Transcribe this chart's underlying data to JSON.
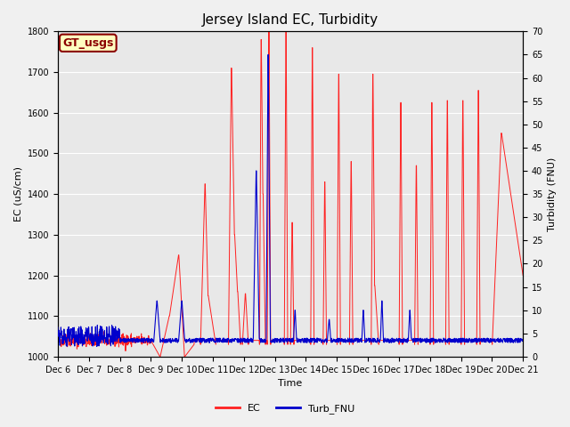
{
  "title": "Jersey Island EC, Turbidity",
  "xlabel": "Time",
  "ylabel_left": "EC (uS/cm)",
  "ylabel_right": "Turbidity (FNU)",
  "annotation_text": "GT_usgs",
  "annotation_color": "#8B0000",
  "annotation_bg": "#FFFFC0",
  "annotation_border": "#8B0000",
  "ylim_left": [
    1000,
    1800
  ],
  "ylim_right": [
    0,
    70
  ],
  "yticks_left": [
    1000,
    1100,
    1200,
    1300,
    1400,
    1500,
    1600,
    1700,
    1800
  ],
  "yticks_right": [
    0,
    5,
    10,
    15,
    20,
    25,
    30,
    35,
    40,
    45,
    50,
    55,
    60,
    65,
    70
  ],
  "xtick_labels": [
    "Dec 6",
    "Dec 7",
    "Dec 8",
    "Dec 9",
    "Dec 10",
    "Dec 11",
    "Dec 12",
    "Dec 13",
    "Dec 14",
    "Dec 15",
    "Dec 16",
    "Dec 17",
    "Dec 18",
    "Dec 19",
    "Dec 20",
    "Dec 21"
  ],
  "ec_color": "#FF2020",
  "turb_color": "#0000CC",
  "plot_bg_color": "#E8E8E8",
  "plot_bg_color2": "#F0F0F0",
  "grid_color": "#FFFFFF",
  "legend_ec": "EC",
  "legend_turb": "Turb_FNU",
  "title_fontsize": 11,
  "label_fontsize": 8,
  "tick_fontsize": 7,
  "annot_fontsize": 9
}
